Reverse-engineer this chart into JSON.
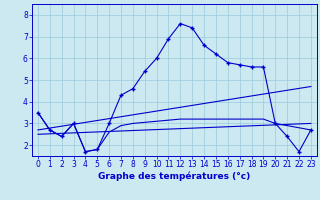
{
  "xlabel": "Graphe des températures (°c)",
  "xlim": [
    -0.5,
    23.5
  ],
  "ylim": [
    1.5,
    8.5
  ],
  "yticks": [
    2,
    3,
    4,
    5,
    6,
    7,
    8
  ],
  "xticks": [
    0,
    1,
    2,
    3,
    4,
    5,
    6,
    7,
    8,
    9,
    10,
    11,
    12,
    13,
    14,
    15,
    16,
    17,
    18,
    19,
    20,
    21,
    22,
    23
  ],
  "background_color": "#cce8f0",
  "grid_color": "#99ccdd",
  "line_color": "#0000cc",
  "lines": [
    {
      "x": [
        0,
        1,
        2,
        3,
        4,
        5,
        6,
        7,
        8,
        9,
        10,
        11,
        12,
        13,
        14,
        15,
        16,
        17,
        18,
        19,
        20,
        21,
        22,
        23
      ],
      "y": [
        3.5,
        2.7,
        2.4,
        3.0,
        1.7,
        1.8,
        3.0,
        4.3,
        4.6,
        5.4,
        6.0,
        6.9,
        7.6,
        7.4,
        6.6,
        6.2,
        5.8,
        5.7,
        5.6,
        5.6,
        3.0,
        2.4,
        1.7,
        2.7
      ],
      "marker": "+"
    },
    {
      "x": [
        0,
        1,
        2,
        3,
        4,
        5,
        6,
        7,
        8,
        9,
        10,
        11,
        12,
        13,
        14,
        15,
        16,
        17,
        18,
        19,
        20,
        21,
        22,
        23
      ],
      "y": [
        3.5,
        2.7,
        2.4,
        3.0,
        1.7,
        1.8,
        2.6,
        2.9,
        3.0,
        3.05,
        3.1,
        3.15,
        3.2,
        3.2,
        3.2,
        3.2,
        3.2,
        3.2,
        3.2,
        3.2,
        3.0,
        2.9,
        2.8,
        2.7
      ],
      "marker": null
    },
    {
      "x": [
        0,
        23
      ],
      "y": [
        2.7,
        4.7
      ],
      "marker": null
    },
    {
      "x": [
        0,
        23
      ],
      "y": [
        2.5,
        3.0
      ],
      "marker": null
    }
  ]
}
